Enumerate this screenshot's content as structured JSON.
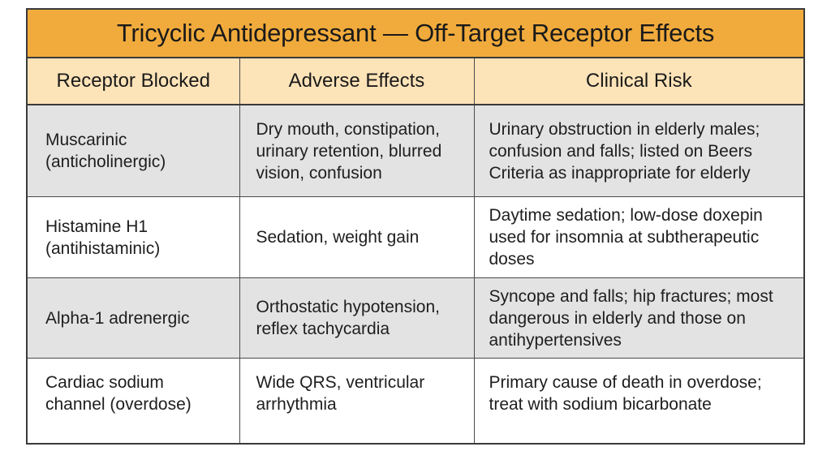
{
  "title": "Tricyclic Antidepressant — Off-Target Receptor Effects",
  "columns": [
    "Receptor Blocked",
    "Adverse Effects",
    "Clinical Risk"
  ],
  "rows": [
    {
      "receptor_line1": "Muscarinic",
      "receptor_line2": "(anticholinergic)",
      "effects": "Dry mouth, constipation, urinary retention, blurred vision, confusion",
      "risk": "Urinary obstruction in elderly males; confusion and falls; listed on Beers Criteria as inappropriate for elderly"
    },
    {
      "receptor_line1": "Histamine H1",
      "receptor_line2": "(antihistaminic)",
      "effects": "Sedation, weight gain",
      "risk": "Daytime sedation; low-dose doxepin used for insomnia at subtherapeutic doses"
    },
    {
      "receptor_line1": "Alpha-1 adrenergic",
      "receptor_line2": "",
      "effects": "Orthostatic hypotension, reflex tachycardia",
      "risk": "Syncope and falls; hip fractures; most dangerous in elderly and those on antihypertensives"
    },
    {
      "receptor_line1": "Cardiac sodium",
      "receptor_line2": "channel (overdose)",
      "effects": "Wide QRS, ventricular arrhythmia",
      "risk": "Primary cause of death in overdose; treat with sodium bicarbonate"
    }
  ]
}
